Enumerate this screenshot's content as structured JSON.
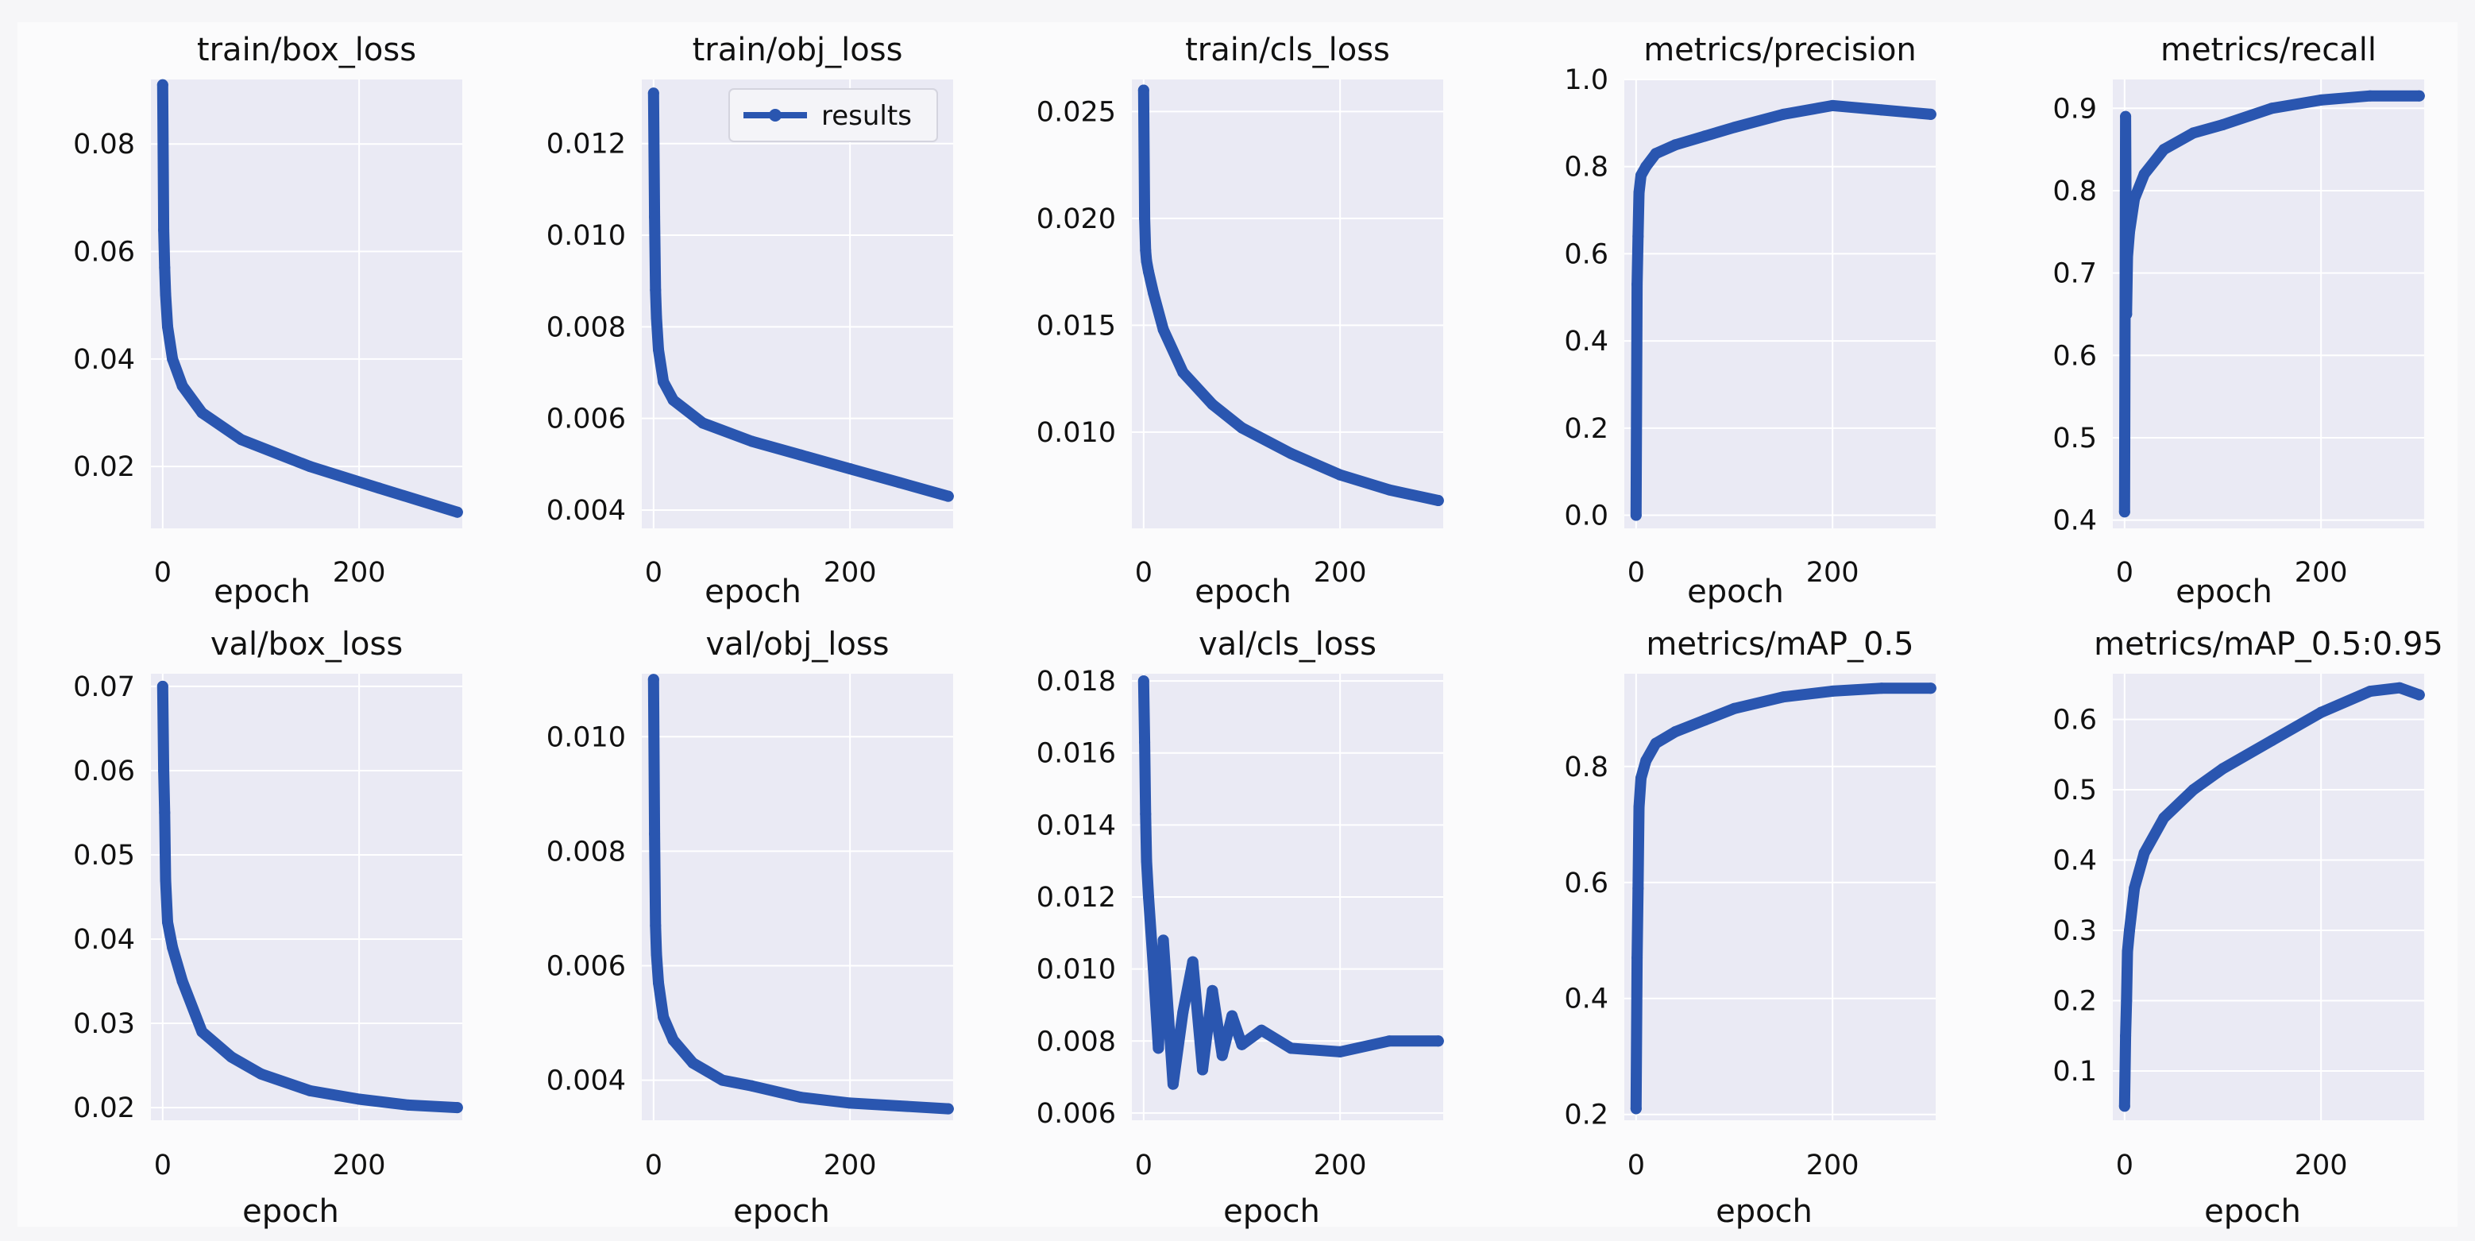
{
  "figure": {
    "x_axis_label": "epoch",
    "legend_label": "results",
    "colors": {
      "line": "#2a56b0",
      "plot_bg": "#eaeaf4",
      "grid": "#ffffff",
      "page_bg": "#f6f6f8"
    }
  },
  "chart_data": [
    {
      "type": "line",
      "title": "train/box_loss",
      "xlabel": "epoch",
      "ylabel": "",
      "xlim": [
        -12,
        305
      ],
      "ylim": [
        0.0085,
        0.092
      ],
      "x_ticks": [
        0,
        200
      ],
      "x_tick_labels": [
        "0",
        "200"
      ],
      "y_ticks": [
        0.02,
        0.04,
        0.06,
        0.08
      ],
      "y_tick_labels": [
        "0.02",
        "0.04",
        "0.06",
        "0.08"
      ],
      "series": [
        {
          "name": "results",
          "x": [
            0,
            1,
            2,
            3,
            5,
            10,
            20,
            40,
            80,
            150,
            220,
            300
          ],
          "y": [
            0.091,
            0.064,
            0.057,
            0.052,
            0.046,
            0.04,
            0.035,
            0.03,
            0.025,
            0.02,
            0.016,
            0.0115
          ]
        }
      ]
    },
    {
      "type": "line",
      "title": "train/obj_loss",
      "xlabel": "epoch",
      "ylabel": "",
      "xlim": [
        -12,
        305
      ],
      "ylim": [
        0.0036,
        0.0134
      ],
      "x_ticks": [
        0,
        200
      ],
      "x_tick_labels": [
        "0",
        "200"
      ],
      "y_ticks": [
        0.004,
        0.006,
        0.008,
        0.01,
        0.012
      ],
      "y_tick_labels": [
        "0.004",
        "0.006",
        "0.008",
        "0.010",
        "0.012"
      ],
      "legend": {
        "position": "top-right"
      },
      "series": [
        {
          "name": "results",
          "x": [
            0,
            1,
            2,
            3,
            5,
            10,
            20,
            50,
            100,
            150,
            200,
            250,
            300
          ],
          "y": [
            0.0131,
            0.0104,
            0.0088,
            0.0082,
            0.0075,
            0.0068,
            0.0064,
            0.0059,
            0.0055,
            0.0052,
            0.0049,
            0.0046,
            0.0043
          ]
        }
      ]
    },
    {
      "type": "line",
      "title": "train/cls_loss",
      "xlabel": "epoch",
      "ylabel": "",
      "xlim": [
        -12,
        305
      ],
      "ylim": [
        0.0055,
        0.0265
      ],
      "x_ticks": [
        0,
        200
      ],
      "x_tick_labels": [
        "0",
        "200"
      ],
      "y_ticks": [
        0.01,
        0.015,
        0.02,
        0.025
      ],
      "y_tick_labels": [
        "0.010",
        "0.015",
        "0.020",
        "0.025"
      ],
      "series": [
        {
          "name": "results",
          "x": [
            0,
            1,
            2,
            3,
            5,
            10,
            20,
            40,
            70,
            100,
            150,
            200,
            250,
            300
          ],
          "y": [
            0.026,
            0.02,
            0.0185,
            0.018,
            0.0175,
            0.0165,
            0.0148,
            0.0128,
            0.0113,
            0.0102,
            0.009,
            0.008,
            0.0073,
            0.0068
          ]
        }
      ]
    },
    {
      "type": "line",
      "title": "metrics/precision",
      "xlabel": "epoch",
      "ylabel": "",
      "xlim": [
        -12,
        305
      ],
      "ylim": [
        -0.03,
        1.0
      ],
      "x_ticks": [
        0,
        200
      ],
      "x_tick_labels": [
        "0",
        "200"
      ],
      "y_ticks": [
        0.0,
        0.2,
        0.4,
        0.6,
        0.8,
        1.0
      ],
      "y_tick_labels": [
        "0.0",
        "0.2",
        "0.4",
        "0.6",
        "0.8",
        "1.0"
      ],
      "series": [
        {
          "name": "results",
          "x": [
            0,
            1,
            2,
            3,
            5,
            10,
            20,
            40,
            70,
            100,
            150,
            200,
            250,
            300
          ],
          "y": [
            0.0,
            0.53,
            0.64,
            0.74,
            0.78,
            0.8,
            0.83,
            0.85,
            0.87,
            0.89,
            0.92,
            0.94,
            0.93,
            0.92
          ]
        }
      ]
    },
    {
      "type": "line",
      "title": "metrics/recall",
      "xlabel": "epoch",
      "ylabel": "",
      "xlim": [
        -12,
        305
      ],
      "ylim": [
        0.39,
        0.935
      ],
      "x_ticks": [
        0,
        200
      ],
      "x_tick_labels": [
        "0",
        "200"
      ],
      "y_ticks": [
        0.4,
        0.5,
        0.6,
        0.7,
        0.8,
        0.9
      ],
      "y_tick_labels": [
        "0.4",
        "0.5",
        "0.6",
        "0.7",
        "0.8",
        "0.9"
      ],
      "series": [
        {
          "name": "results",
          "x": [
            0,
            1,
            2,
            3,
            5,
            10,
            20,
            40,
            70,
            100,
            150,
            200,
            250,
            300
          ],
          "y": [
            0.41,
            0.89,
            0.65,
            0.72,
            0.75,
            0.79,
            0.82,
            0.85,
            0.87,
            0.88,
            0.9,
            0.91,
            0.915,
            0.915
          ]
        }
      ]
    },
    {
      "type": "line",
      "title": "val/box_loss",
      "xlabel": "epoch",
      "ylabel": "",
      "xlim": [
        -12,
        305
      ],
      "ylim": [
        0.0185,
        0.0715
      ],
      "x_ticks": [
        0,
        200
      ],
      "x_tick_labels": [
        "0",
        "200"
      ],
      "y_ticks": [
        0.02,
        0.03,
        0.04,
        0.05,
        0.06,
        0.07
      ],
      "y_tick_labels": [
        "0.02",
        "0.03",
        "0.04",
        "0.05",
        "0.06",
        "0.07"
      ],
      "series": [
        {
          "name": "results",
          "x": [
            0,
            1,
            2,
            3,
            5,
            10,
            20,
            40,
            70,
            100,
            150,
            200,
            250,
            300
          ],
          "y": [
            0.07,
            0.06,
            0.055,
            0.047,
            0.042,
            0.039,
            0.035,
            0.029,
            0.026,
            0.024,
            0.022,
            0.021,
            0.0203,
            0.02
          ]
        }
      ]
    },
    {
      "type": "line",
      "title": "val/obj_loss",
      "xlabel": "epoch",
      "ylabel": "",
      "xlim": [
        -12,
        305
      ],
      "ylim": [
        0.0033,
        0.0111
      ],
      "x_ticks": [
        0,
        200
      ],
      "x_tick_labels": [
        "0",
        "200"
      ],
      "y_ticks": [
        0.004,
        0.006,
        0.008,
        0.01
      ],
      "y_tick_labels": [
        "0.004",
        "0.006",
        "0.008",
        "0.010"
      ],
      "series": [
        {
          "name": "results",
          "x": [
            0,
            1,
            2,
            3,
            5,
            10,
            20,
            40,
            70,
            100,
            150,
            200,
            250,
            300
          ],
          "y": [
            0.011,
            0.0083,
            0.0067,
            0.0062,
            0.0057,
            0.0051,
            0.0047,
            0.0043,
            0.004,
            0.0039,
            0.0037,
            0.0036,
            0.00355,
            0.0035
          ]
        }
      ]
    },
    {
      "type": "line",
      "title": "val/cls_loss",
      "xlabel": "epoch",
      "ylabel": "",
      "xlim": [
        -12,
        305
      ],
      "ylim": [
        0.0058,
        0.0182
      ],
      "x_ticks": [
        0,
        200
      ],
      "x_tick_labels": [
        "0",
        "200"
      ],
      "y_ticks": [
        0.006,
        0.008,
        0.01,
        0.012,
        0.014,
        0.016,
        0.018
      ],
      "y_tick_labels": [
        "0.006",
        "0.008",
        "0.010",
        "0.012",
        "0.014",
        "0.016",
        "0.018"
      ],
      "series": [
        {
          "name": "results",
          "x": [
            0,
            1,
            2,
            3,
            5,
            10,
            15,
            20,
            30,
            40,
            50,
            60,
            70,
            80,
            90,
            100,
            120,
            150,
            200,
            250,
            300
          ],
          "y": [
            0.018,
            0.0163,
            0.0143,
            0.013,
            0.012,
            0.01,
            0.0078,
            0.0108,
            0.0068,
            0.0088,
            0.0102,
            0.0072,
            0.0094,
            0.0076,
            0.0087,
            0.0079,
            0.0083,
            0.0078,
            0.0077,
            0.008,
            0.008
          ]
        }
      ]
    },
    {
      "type": "line",
      "title": "metrics/mAP_0.5",
      "xlabel": "epoch",
      "ylabel": "",
      "xlim": [
        -12,
        305
      ],
      "ylim": [
        0.19,
        0.96
      ],
      "x_ticks": [
        0,
        200
      ],
      "x_tick_labels": [
        "0",
        "200"
      ],
      "y_ticks": [
        0.2,
        0.4,
        0.6,
        0.8
      ],
      "y_tick_labels": [
        "0.2",
        "0.4",
        "0.6",
        "0.8"
      ],
      "series": [
        {
          "name": "results",
          "x": [
            0,
            1,
            2,
            3,
            5,
            10,
            20,
            40,
            70,
            100,
            150,
            200,
            250,
            300
          ],
          "y": [
            0.21,
            0.47,
            0.59,
            0.73,
            0.78,
            0.81,
            0.84,
            0.86,
            0.88,
            0.9,
            0.92,
            0.93,
            0.935,
            0.935
          ]
        }
      ]
    },
    {
      "type": "line",
      "title": "metrics/mAP_0.5:0.95",
      "xlabel": "epoch",
      "ylabel": "",
      "xlim": [
        -12,
        305
      ],
      "ylim": [
        0.03,
        0.665
      ],
      "x_ticks": [
        0,
        200
      ],
      "x_tick_labels": [
        "0",
        "200"
      ],
      "y_ticks": [
        0.1,
        0.2,
        0.3,
        0.4,
        0.5,
        0.6
      ],
      "y_tick_labels": [
        "0.1",
        "0.2",
        "0.3",
        "0.4",
        "0.5",
        "0.6"
      ],
      "series": [
        {
          "name": "results",
          "x": [
            0,
            1,
            2,
            3,
            5,
            10,
            20,
            40,
            70,
            100,
            150,
            200,
            250,
            280,
            300
          ],
          "y": [
            0.05,
            0.15,
            0.2,
            0.27,
            0.3,
            0.36,
            0.41,
            0.46,
            0.5,
            0.53,
            0.57,
            0.61,
            0.64,
            0.645,
            0.635
          ]
        }
      ]
    }
  ]
}
